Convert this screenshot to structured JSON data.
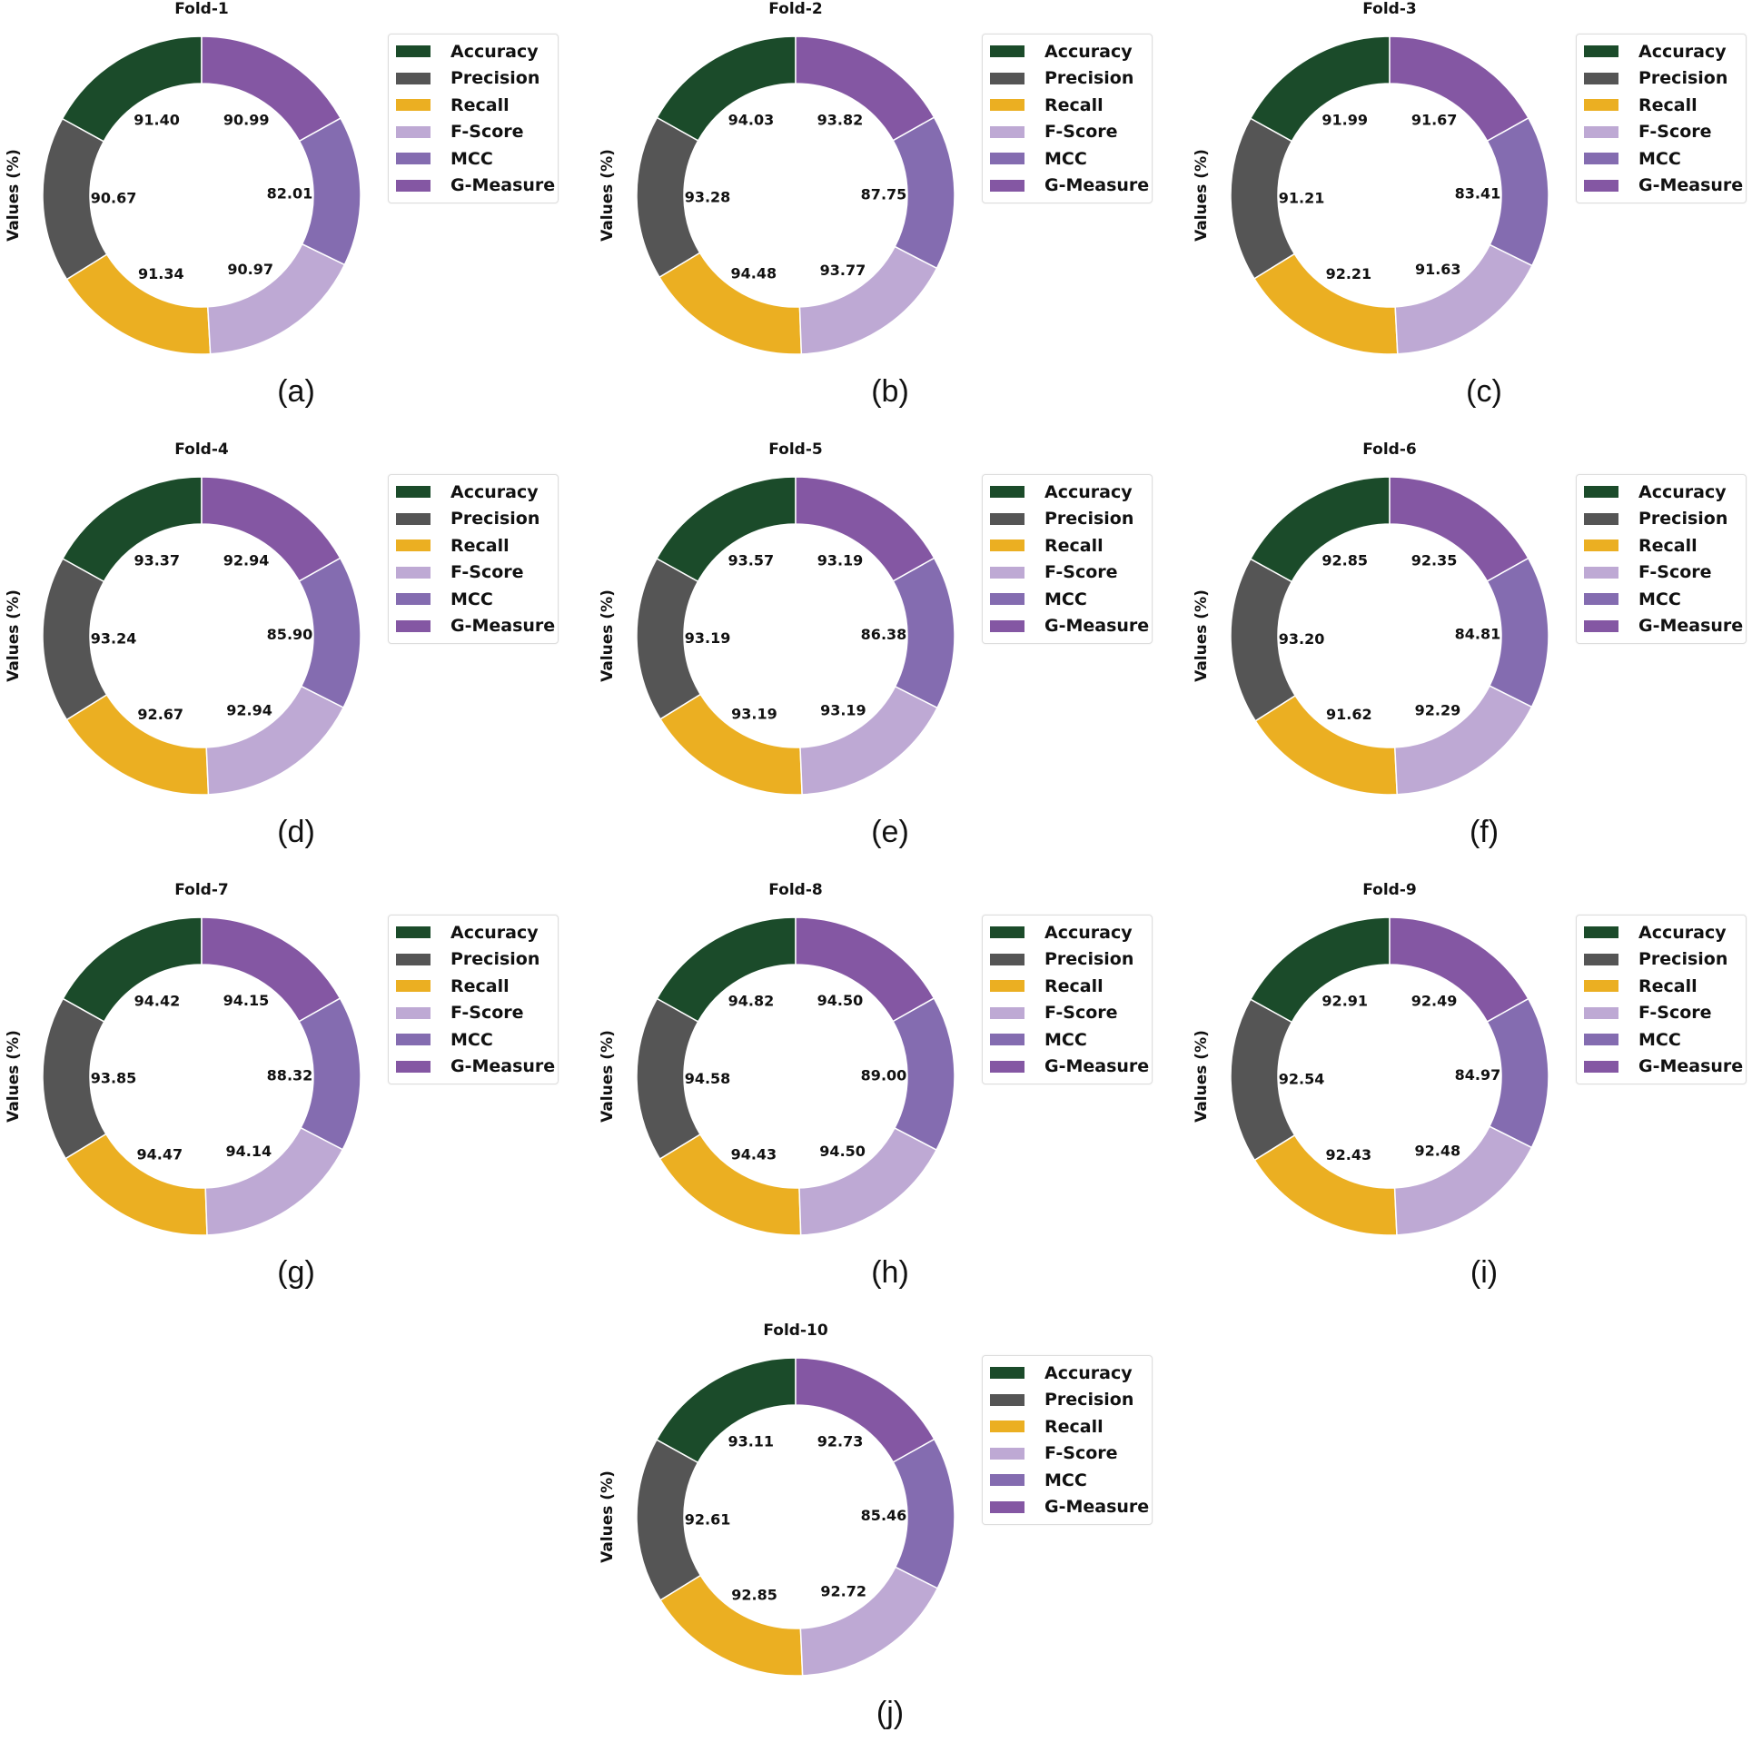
{
  "chart_data": {
    "type": "pie",
    "style": "donut",
    "ylabel": "Values (%)",
    "categories": [
      "Accuracy",
      "Precision",
      "Recall",
      "F-Score",
      "MCC",
      "G-Measure"
    ],
    "colors": [
      "#1b4b2a",
      "#555555",
      "#ebaf22",
      "#bea9d4",
      "#846cb0",
      "#8457a3"
    ],
    "legend_placement": "right",
    "panels": [
      {
        "caption": "(a)",
        "title": "Fold-1",
        "values": [
          91.4,
          90.67,
          91.34,
          90.97,
          82.01,
          90.99
        ]
      },
      {
        "caption": "(b)",
        "title": "Fold-2",
        "values": [
          94.03,
          93.28,
          94.48,
          93.77,
          87.75,
          93.82
        ]
      },
      {
        "caption": "(c)",
        "title": "Fold-3",
        "values": [
          91.99,
          91.21,
          92.21,
          91.63,
          83.41,
          91.67
        ]
      },
      {
        "caption": "(d)",
        "title": "Fold-4",
        "values": [
          93.37,
          93.24,
          92.67,
          92.94,
          85.9,
          92.94
        ]
      },
      {
        "caption": "(e)",
        "title": "Fold-5",
        "values": [
          93.57,
          93.19,
          93.19,
          93.19,
          86.38,
          93.19
        ]
      },
      {
        "caption": "(f)",
        "title": "Fold-6",
        "values": [
          92.85,
          93.2,
          91.62,
          92.29,
          84.81,
          92.35
        ]
      },
      {
        "caption": "(g)",
        "title": "Fold-7",
        "values": [
          94.42,
          93.85,
          94.47,
          94.14,
          88.32,
          94.15
        ]
      },
      {
        "caption": "(h)",
        "title": "Fold-8",
        "values": [
          94.82,
          94.58,
          94.43,
          94.5,
          89.0,
          94.5
        ]
      },
      {
        "caption": "(i)",
        "title": "Fold-9",
        "values": [
          92.91,
          92.54,
          92.43,
          92.48,
          84.97,
          92.49
        ]
      },
      {
        "caption": "(j)",
        "title": "Fold-10",
        "values": [
          93.11,
          92.61,
          92.85,
          92.72,
          85.46,
          92.73
        ]
      }
    ]
  }
}
